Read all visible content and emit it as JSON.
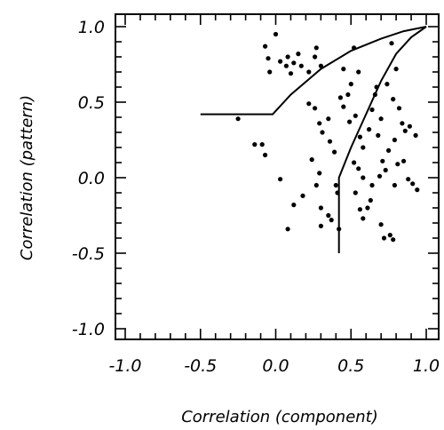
{
  "chart_data": {
    "type": "scatter",
    "title": "",
    "xlabel": "Correlation (component)",
    "ylabel": "Correlation (pattern)",
    "xlim": [
      -1.0,
      1.0
    ],
    "ylim": [
      -1.0,
      1.0
    ],
    "xticks": [
      -1.0,
      -0.5,
      0.0,
      0.5,
      1.0
    ],
    "yticks": [
      -1.0,
      -0.5,
      0.0,
      0.5,
      1.0
    ],
    "xtick_labels": [
      "-1.0",
      "-0.5",
      "0.0",
      "0.5",
      "1.0"
    ],
    "ytick_labels": [
      "-1.0",
      "-0.5",
      "0.0",
      "0.5",
      "1.0"
    ],
    "grid": false,
    "legend": "none",
    "points": [
      {
        "x": -0.07,
        "y": 0.87
      },
      {
        "x": 0.0,
        "y": 0.95
      },
      {
        "x": -0.05,
        "y": 0.79
      },
      {
        "x": -0.04,
        "y": 0.7
      },
      {
        "x": 0.03,
        "y": 0.77
      },
      {
        "x": 0.07,
        "y": 0.74
      },
      {
        "x": 0.1,
        "y": 0.69
      },
      {
        "x": 0.08,
        "y": 0.8
      },
      {
        "x": 0.12,
        "y": 0.76
      },
      {
        "x": 0.15,
        "y": 0.82
      },
      {
        "x": 0.17,
        "y": 0.74
      },
      {
        "x": 0.22,
        "y": 0.7
      },
      {
        "x": 0.26,
        "y": 0.8
      },
      {
        "x": 0.27,
        "y": 0.86
      },
      {
        "x": 0.3,
        "y": 0.74
      },
      {
        "x": 0.22,
        "y": 0.49
      },
      {
        "x": -0.25,
        "y": 0.39
      },
      {
        "x": -0.14,
        "y": 0.22
      },
      {
        "x": -0.09,
        "y": 0.22
      },
      {
        "x": -0.07,
        "y": 0.15
      },
      {
        "x": 0.03,
        "y": -0.01
      },
      {
        "x": 0.08,
        "y": -0.34
      },
      {
        "x": 0.12,
        "y": -0.18
      },
      {
        "x": 0.18,
        "y": -0.12
      },
      {
        "x": 0.26,
        "y": 0.46
      },
      {
        "x": 0.29,
        "y": 0.36
      },
      {
        "x": 0.31,
        "y": 0.3
      },
      {
        "x": 0.35,
        "y": 0.39
      },
      {
        "x": 0.36,
        "y": 0.24
      },
      {
        "x": 0.39,
        "y": 0.17
      },
      {
        "x": 0.24,
        "y": 0.12
      },
      {
        "x": 0.29,
        "y": 0.03
      },
      {
        "x": 0.27,
        "y": -0.05
      },
      {
        "x": 0.3,
        "y": -0.2
      },
      {
        "x": 0.3,
        "y": -0.32
      },
      {
        "x": 0.35,
        "y": -0.25
      },
      {
        "x": 0.37,
        "y": -0.28
      },
      {
        "x": 0.4,
        "y": -0.05
      },
      {
        "x": 0.41,
        "y": -0.1
      },
      {
        "x": 0.42,
        "y": -0.34
      },
      {
        "x": 0.43,
        "y": 0.53
      },
      {
        "x": 0.45,
        "y": 0.47
      },
      {
        "x": 0.48,
        "y": 0.55
      },
      {
        "x": 0.5,
        "y": 0.62
      },
      {
        "x": 0.45,
        "y": 0.72
      },
      {
        "x": 0.52,
        "y": 0.86
      },
      {
        "x": 0.55,
        "y": 0.7
      },
      {
        "x": 0.49,
        "y": 0.37
      },
      {
        "x": 0.53,
        "y": 0.41
      },
      {
        "x": 0.56,
        "y": 0.27
      },
      {
        "x": 0.58,
        "y": 0.2
      },
      {
        "x": 0.52,
        "y": 0.1
      },
      {
        "x": 0.55,
        "y": 0.06
      },
      {
        "x": 0.58,
        "y": 0.0
      },
      {
        "x": 0.53,
        "y": -0.1
      },
      {
        "x": 0.56,
        "y": -0.21
      },
      {
        "x": 0.58,
        "y": -0.27
      },
      {
        "x": 0.61,
        "y": -0.2
      },
      {
        "x": 0.63,
        "y": -0.15
      },
      {
        "x": 0.64,
        "y": -0.05
      },
      {
        "x": 0.62,
        "y": 0.32
      },
      {
        "x": 0.64,
        "y": 0.45
      },
      {
        "x": 0.66,
        "y": 0.55
      },
      {
        "x": 0.67,
        "y": 0.6
      },
      {
        "x": 0.7,
        "y": 0.39
      },
      {
        "x": 0.68,
        "y": 0.28
      },
      {
        "x": 0.71,
        "y": 0.11
      },
      {
        "x": 0.73,
        "y": 0.05
      },
      {
        "x": 0.69,
        "y": 0.01
      },
      {
        "x": 0.7,
        "y": -0.31
      },
      {
        "x": 0.72,
        "y": -0.4
      },
      {
        "x": 0.76,
        "y": -0.38
      },
      {
        "x": 0.78,
        "y": -0.41
      },
      {
        "x": 0.74,
        "y": 0.62
      },
      {
        "x": 0.77,
        "y": 0.89
      },
      {
        "x": 0.8,
        "y": 0.72
      },
      {
        "x": 0.78,
        "y": 0.52
      },
      {
        "x": 0.82,
        "y": 0.46
      },
      {
        "x": 0.79,
        "y": 0.25
      },
      {
        "x": 0.84,
        "y": 0.36
      },
      {
        "x": 0.86,
        "y": 0.31
      },
      {
        "x": 0.81,
        "y": 0.09
      },
      {
        "x": 0.85,
        "y": 0.11
      },
      {
        "x": 0.88,
        "y": -0.01
      },
      {
        "x": 0.91,
        "y": -0.04
      },
      {
        "x": 0.94,
        "y": -0.08
      },
      {
        "x": 0.89,
        "y": 0.34
      },
      {
        "x": 0.93,
        "y": 0.28
      },
      {
        "x": 0.79,
        "y": -0.05
      },
      {
        "x": 0.75,
        "y": 0.18
      }
    ],
    "boundary_lines": [
      {
        "points": [
          [
            -0.5,
            0.42
          ],
          [
            -0.02,
            0.42
          ],
          [
            0.1,
            0.55
          ],
          [
            0.3,
            0.72
          ],
          [
            0.5,
            0.84
          ],
          [
            0.7,
            0.92
          ],
          [
            0.85,
            0.97
          ],
          [
            1.0,
            1.0
          ]
        ]
      },
      {
        "points": [
          [
            0.42,
            -0.5
          ],
          [
            0.42,
            0.0
          ],
          [
            0.5,
            0.2
          ],
          [
            0.6,
            0.42
          ],
          [
            0.7,
            0.64
          ],
          [
            0.8,
            0.82
          ],
          [
            0.9,
            0.93
          ],
          [
            1.0,
            1.0
          ]
        ]
      }
    ]
  }
}
